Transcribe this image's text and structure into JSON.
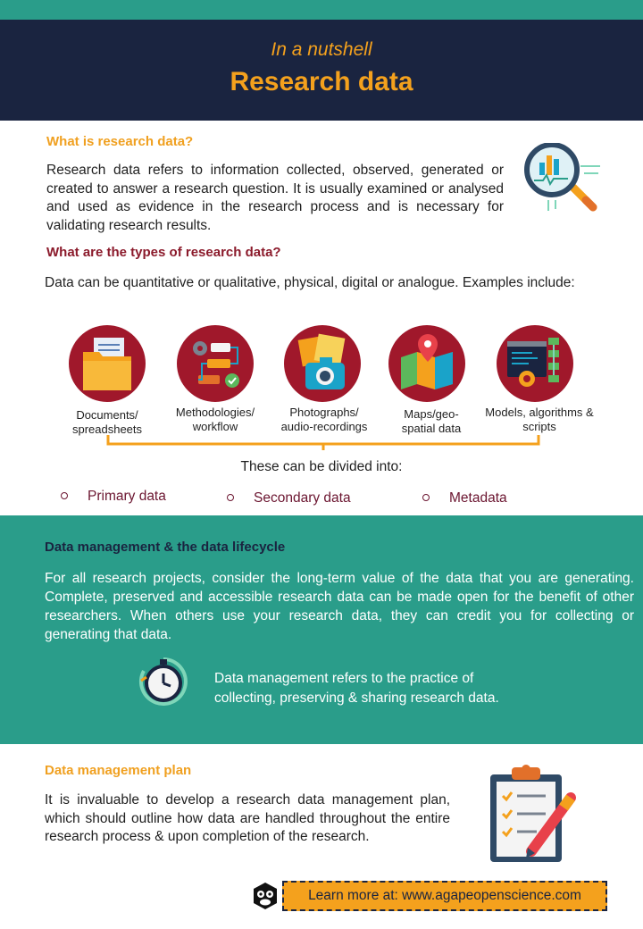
{
  "header": {
    "subtitle": "In a nutshell",
    "title": "Research data"
  },
  "what_is": {
    "heading": "What is  research  data?",
    "text": "Research  data  refers to information  collected,  observed,  generated or created to answer  a research question.  It is usually  examined  or analysed  and used as evidence  in the research process and is necessary  for validating  research  results."
  },
  "types": {
    "heading": "What are the types of research data?",
    "intro": "Data  can  be quantitative  or qualitative,  physical,  digital  or analogue.  Examples include:",
    "items": [
      {
        "line1": "Documents/",
        "line2": "spreadsheets",
        "icon": "folder-documents-icon"
      },
      {
        "line1": "Methodologies/",
        "line2": "workflow",
        "icon": "workflow-icon"
      },
      {
        "line1": "Photographs/",
        "line2": "audio-recordings",
        "icon": "camera-photo-icon"
      },
      {
        "line1": "Maps/geo-",
        "line2": "spatial data",
        "icon": "map-pin-icon"
      },
      {
        "line1": "Models, algorithms &",
        "line2": "scripts",
        "icon": "code-algorithm-icon"
      }
    ],
    "divided": "These  can  be divided  into:",
    "categories": [
      "Primary data",
      "Secondary  data",
      "Metadata"
    ]
  },
  "lifecycle": {
    "heading": "Data management  & the data lifecycle",
    "text": "For all research projects,  consider the long-term  value  of the data  that  you are generating.  Complete,  preserved  and accessible  research data can be made open for the benefit of other researchers. When others use your research data, they can credit you for collecting  or generating  that data.",
    "note_line1": "Data management  refers to the practice of",
    "note_line2": "collecting,  preserving  & sharing  research  data.",
    "icon": "stopwatch-icon"
  },
  "plan": {
    "heading": "Data management  plan",
    "text": "It is invaluable  to develop  a research data management  plan, which should  outline how data are handled  throughout   the entire research process & upon completion  of the research.",
    "icon": "clipboard-checklist-icon"
  },
  "footer": {
    "learn_more": "Learn more at: www.agapeopenscience.com",
    "logo": "monkey-logo-icon"
  },
  "colors": {
    "navy": "#1a2440",
    "orange": "#f4a11d",
    "teal": "#2a9d8a",
    "crimson": "#a0182b"
  }
}
